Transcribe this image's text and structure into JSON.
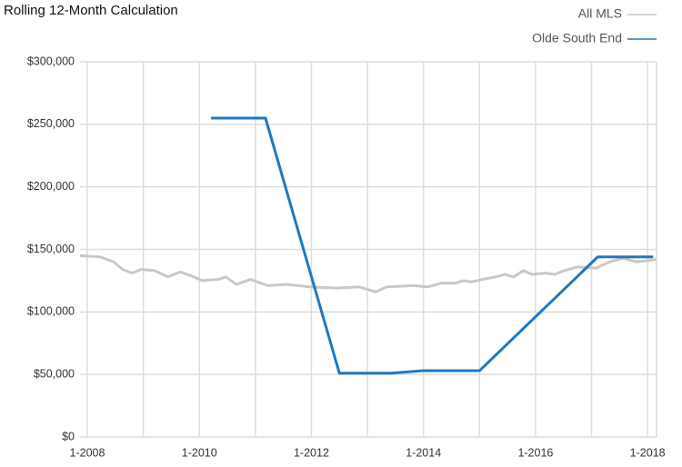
{
  "chart_data": {
    "type": "line",
    "title": "Rolling 12-Month Calculation",
    "xlim": [
      2007.87,
      2018.16
    ],
    "xticks": [
      {
        "value": 2008,
        "label": "1-2008"
      },
      {
        "value": 2010,
        "label": "1-2010"
      },
      {
        "value": 2012,
        "label": "1-2012"
      },
      {
        "value": 2014,
        "label": "1-2014"
      },
      {
        "value": 2016,
        "label": "1-2016"
      },
      {
        "value": 2018,
        "label": "1-2018"
      }
    ],
    "x_minor_ticks": [
      2009,
      2011,
      2013,
      2015,
      2017
    ],
    "ylim": [
      0,
      300000
    ],
    "yticks": [
      {
        "value": 0,
        "label": "$0"
      },
      {
        "value": 50000,
        "label": "$50,000"
      },
      {
        "value": 100000,
        "label": "$100,000"
      },
      {
        "value": 150000,
        "label": "$150,000"
      },
      {
        "value": 200000,
        "label": "$200,000"
      },
      {
        "value": 250000,
        "label": "$250,000"
      },
      {
        "value": 300000,
        "label": "$300,000"
      }
    ],
    "grid": true,
    "legend": "top-right",
    "series": [
      {
        "name": "All MLS",
        "color": "#c8c8c8",
        "x": [
          2007.87,
          2008.23,
          2008.47,
          2008.63,
          2008.8,
          2008.96,
          2009.2,
          2009.44,
          2009.66,
          2009.85,
          2010.05,
          2010.34,
          2010.47,
          2010.66,
          2010.91,
          2011.23,
          2011.56,
          2011.96,
          2012.45,
          2012.85,
          2013.15,
          2013.34,
          2013.83,
          2014.07,
          2014.32,
          2014.56,
          2014.72,
          2014.85,
          2015.05,
          2015.29,
          2015.45,
          2015.61,
          2015.78,
          2015.94,
          2016.18,
          2016.34,
          2016.51,
          2016.75,
          2017.08,
          2017.32,
          2017.56,
          2017.81,
          2018.16
        ],
        "values": [
          145000,
          144000,
          140000,
          134000,
          131000,
          134000,
          133000,
          128000,
          132000,
          129000,
          125000,
          126000,
          128000,
          122000,
          126000,
          121000,
          122000,
          120000,
          119000,
          120000,
          116000,
          120000,
          121000,
          120000,
          123000,
          123000,
          125000,
          124000,
          126000,
          128000,
          130000,
          128000,
          133000,
          130000,
          131000,
          130000,
          133000,
          136000,
          135000,
          140000,
          143000,
          140000,
          142000
        ]
      },
      {
        "name": "Olde South End",
        "color": "#1f78c1",
        "x": [
          2010.21,
          2011.18,
          2012.5,
          2013.42,
          2013.99,
          2015.0,
          2017.11,
          2018.1
        ],
        "values": [
          255000,
          255000,
          51000,
          51000,
          53000,
          53000,
          144000,
          144000
        ]
      }
    ]
  }
}
